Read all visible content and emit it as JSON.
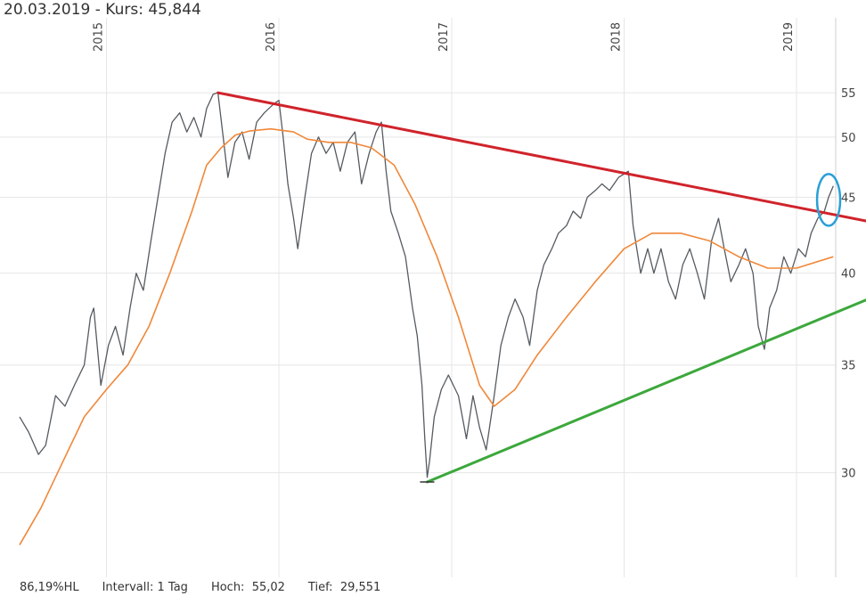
{
  "header": {
    "date": "20.03.2019",
    "separator": " - ",
    "price_label": "Kurs:",
    "price": "45,844"
  },
  "footer": {
    "range_pct": "86,19%HL",
    "interval_label": "Intervall:",
    "interval_value": "1 Tag",
    "high_label": "Hoch:",
    "high_value": "55,02",
    "low_label": "Tief:",
    "low_value": "29,551"
  },
  "colors": {
    "price_line": "#555b61",
    "moving_average": "#f0883a",
    "resistance_trendline": "#d0232b",
    "support_trendline": "#3ca83c",
    "highlight_ellipse": "#2a9fd6",
    "grid": "#e6e6e6"
  },
  "chart_data": {
    "type": "line",
    "title": "",
    "xlabel": "",
    "ylabel": "",
    "ylim": [
      25.5,
      55.5
    ],
    "xlim": [
      "2014-07-01",
      "2019-03-25"
    ],
    "y_ticks": [
      30,
      35,
      40,
      45,
      50,
      55
    ],
    "x_ticks": [
      {
        "label": "2015",
        "date": "2015-01-01"
      },
      {
        "label": "2016",
        "date": "2016-01-01"
      },
      {
        "label": "2017",
        "date": "2017-01-01"
      },
      {
        "label": "2018",
        "date": "2018-01-01"
      },
      {
        "label": "2019",
        "date": "2019-01-01"
      }
    ],
    "grid": true,
    "series": [
      {
        "kind": "price",
        "points": [
          [
            "2014-07-01",
            32.5
          ],
          [
            "2014-07-20",
            31.8
          ],
          [
            "2014-08-10",
            30.8
          ],
          [
            "2014-08-25",
            31.2
          ],
          [
            "2014-09-15",
            33.5
          ],
          [
            "2014-10-05",
            33.0
          ],
          [
            "2014-10-25",
            34.0
          ],
          [
            "2014-11-15",
            35.0
          ],
          [
            "2014-11-28",
            37.5
          ],
          [
            "2014-12-05",
            38.0
          ],
          [
            "2014-12-20",
            34.0
          ],
          [
            "2015-01-05",
            36.0
          ],
          [
            "2015-01-20",
            37.0
          ],
          [
            "2015-02-05",
            35.5
          ],
          [
            "2015-02-20",
            38.0
          ],
          [
            "2015-03-05",
            40.0
          ],
          [
            "2015-03-20",
            39.0
          ],
          [
            "2015-04-05",
            42.0
          ],
          [
            "2015-04-20",
            45.0
          ],
          [
            "2015-05-05",
            48.5
          ],
          [
            "2015-05-20",
            51.5
          ],
          [
            "2015-06-05",
            52.5
          ],
          [
            "2015-06-20",
            50.5
          ],
          [
            "2015-07-05",
            52.0
          ],
          [
            "2015-07-20",
            50.0
          ],
          [
            "2015-08-01",
            53.0
          ],
          [
            "2015-08-15",
            54.8
          ],
          [
            "2015-08-25",
            55.0
          ],
          [
            "2015-09-05",
            50.0
          ],
          [
            "2015-09-15",
            46.5
          ],
          [
            "2015-09-30",
            49.5
          ],
          [
            "2015-10-15",
            50.5
          ],
          [
            "2015-10-30",
            48.0
          ],
          [
            "2015-11-15",
            51.5
          ],
          [
            "2015-12-01",
            52.5
          ],
          [
            "2015-12-20",
            53.5
          ],
          [
            "2016-01-01",
            54.0
          ],
          [
            "2016-01-10",
            50.0
          ],
          [
            "2016-01-20",
            46.0
          ],
          [
            "2016-02-01",
            43.5
          ],
          [
            "2016-02-10",
            41.5
          ],
          [
            "2016-02-25",
            45.0
          ],
          [
            "2016-03-10",
            48.5
          ],
          [
            "2016-03-25",
            50.0
          ],
          [
            "2016-04-10",
            48.5
          ],
          [
            "2016-04-25",
            49.5
          ],
          [
            "2016-05-10",
            47.0
          ],
          [
            "2016-05-25",
            49.5
          ],
          [
            "2016-06-10",
            50.5
          ],
          [
            "2016-06-24",
            46.0
          ],
          [
            "2016-07-10",
            48.5
          ],
          [
            "2016-07-25",
            50.5
          ],
          [
            "2016-08-05",
            51.5
          ],
          [
            "2016-08-15",
            47.0
          ],
          [
            "2016-08-25",
            44.0
          ],
          [
            "2016-09-10",
            42.5
          ],
          [
            "2016-09-25",
            41.0
          ],
          [
            "2016-10-10",
            38.0
          ],
          [
            "2016-10-20",
            36.5
          ],
          [
            "2016-10-30",
            34.0
          ],
          [
            "2016-11-05",
            31.5
          ],
          [
            "2016-11-10",
            29.8
          ],
          [
            "2016-11-15",
            30.5
          ],
          [
            "2016-11-25",
            32.5
          ],
          [
            "2016-12-10",
            33.8
          ],
          [
            "2016-12-25",
            34.5
          ],
          [
            "2017-01-15",
            33.5
          ],
          [
            "2017-02-01",
            31.5
          ],
          [
            "2017-02-15",
            33.5
          ],
          [
            "2017-03-01",
            32.0
          ],
          [
            "2017-03-15",
            31.0
          ],
          [
            "2017-04-01",
            33.5
          ],
          [
            "2017-04-15",
            36.0
          ],
          [
            "2017-05-01",
            37.5
          ],
          [
            "2017-05-15",
            38.5
          ],
          [
            "2017-06-01",
            37.5
          ],
          [
            "2017-06-15",
            36.0
          ],
          [
            "2017-07-01",
            39.0
          ],
          [
            "2017-07-15",
            40.5
          ],
          [
            "2017-08-01",
            41.5
          ],
          [
            "2017-08-15",
            42.5
          ],
          [
            "2017-09-01",
            43.0
          ],
          [
            "2017-09-15",
            44.0
          ],
          [
            "2017-10-01",
            43.5
          ],
          [
            "2017-10-15",
            45.0
          ],
          [
            "2017-11-01",
            45.5
          ],
          [
            "2017-11-15",
            46.0
          ],
          [
            "2017-12-01",
            45.5
          ],
          [
            "2017-12-20",
            46.5
          ],
          [
            "2018-01-10",
            47.0
          ],
          [
            "2018-01-20",
            43.0
          ],
          [
            "2018-02-05",
            40.0
          ],
          [
            "2018-02-20",
            41.5
          ],
          [
            "2018-03-05",
            40.0
          ],
          [
            "2018-03-20",
            41.5
          ],
          [
            "2018-04-05",
            39.5
          ],
          [
            "2018-04-20",
            38.5
          ],
          [
            "2018-05-05",
            40.5
          ],
          [
            "2018-05-20",
            41.5
          ],
          [
            "2018-06-05",
            40.0
          ],
          [
            "2018-06-20",
            38.5
          ],
          [
            "2018-07-05",
            42.0
          ],
          [
            "2018-07-20",
            43.5
          ],
          [
            "2018-08-01",
            41.5
          ],
          [
            "2018-08-15",
            39.5
          ],
          [
            "2018-09-01",
            40.5
          ],
          [
            "2018-09-15",
            41.5
          ],
          [
            "2018-10-01",
            40.0
          ],
          [
            "2018-10-12",
            37.0
          ],
          [
            "2018-10-25",
            35.8
          ],
          [
            "2018-11-05",
            38.0
          ],
          [
            "2018-11-20",
            39.0
          ],
          [
            "2018-12-05",
            41.0
          ],
          [
            "2018-12-20",
            40.0
          ],
          [
            "2019-01-05",
            41.5
          ],
          [
            "2019-01-20",
            41.0
          ],
          [
            "2019-02-01",
            42.5
          ],
          [
            "2019-02-15",
            43.5
          ],
          [
            "2019-03-01",
            44.0
          ],
          [
            "2019-03-10",
            45.0
          ],
          [
            "2019-03-20",
            45.844
          ]
        ]
      },
      {
        "kind": "moving_average",
        "points": [
          [
            "2014-07-01",
            27.0
          ],
          [
            "2014-08-15",
            28.5
          ],
          [
            "2014-10-01",
            30.5
          ],
          [
            "2014-11-15",
            32.5
          ],
          [
            "2015-01-01",
            33.8
          ],
          [
            "2015-02-15",
            35.0
          ],
          [
            "2015-04-01",
            37.0
          ],
          [
            "2015-05-15",
            40.0
          ],
          [
            "2015-07-01",
            44.0
          ],
          [
            "2015-08-01",
            47.5
          ],
          [
            "2015-09-01",
            49.0
          ],
          [
            "2015-10-01",
            50.2
          ],
          [
            "2015-11-01",
            50.6
          ],
          [
            "2015-12-15",
            50.8
          ],
          [
            "2016-02-01",
            50.5
          ],
          [
            "2016-03-01",
            49.8
          ],
          [
            "2016-04-15",
            49.5
          ],
          [
            "2016-06-01",
            49.5
          ],
          [
            "2016-07-15",
            49.0
          ],
          [
            "2016-09-01",
            47.5
          ],
          [
            "2016-10-15",
            44.5
          ],
          [
            "2016-12-01",
            41.0
          ],
          [
            "2017-01-15",
            37.5
          ],
          [
            "2017-03-01",
            34.0
          ],
          [
            "2017-04-01",
            33.0
          ],
          [
            "2017-05-15",
            33.8
          ],
          [
            "2017-07-01",
            35.5
          ],
          [
            "2017-09-01",
            37.5
          ],
          [
            "2017-11-01",
            39.5
          ],
          [
            "2018-01-01",
            41.5
          ],
          [
            "2018-03-01",
            42.5
          ],
          [
            "2018-05-01",
            42.5
          ],
          [
            "2018-07-01",
            42.0
          ],
          [
            "2018-09-01",
            41.0
          ],
          [
            "2018-11-01",
            40.3
          ],
          [
            "2019-01-01",
            40.3
          ],
          [
            "2019-03-20",
            41.0
          ]
        ]
      }
    ],
    "trendlines": [
      {
        "name": "",
        "kind": "resistance",
        "from": [
          "2015-08-25",
          55.0
        ],
        "to": [
          "2019-03-25",
          43.5
        ]
      },
      {
        "name": "",
        "kind": "support",
        "from": [
          "2016-11-10",
          29.6
        ],
        "to": [
          "2019-03-25",
          38.3
        ]
      }
    ],
    "highlight": {
      "kind": "ellipse",
      "center": [
        "2019-03-10",
        45.0
      ]
    }
  }
}
